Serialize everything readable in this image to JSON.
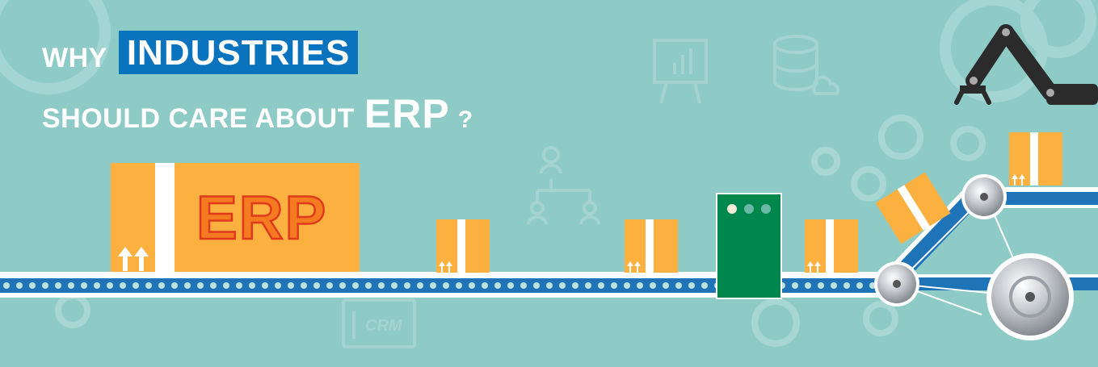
{
  "banner": {
    "headline_prefix": "WHY",
    "headline_highlight": "INDUSTRIES",
    "headline_line2": "SHOULD CARE ABOUT",
    "headline_erp": "ERP",
    "headline_question": "?",
    "big_box_label": "ERP",
    "crm_label": "CRM"
  },
  "colors": {
    "background": "#8ecbc7",
    "highlight_blue": "#0a73bd",
    "box_orange": "#fbb040",
    "erp_text_orange": "#f47b20",
    "conveyor_blue": "#1f74b8",
    "machine_green": "#00874d",
    "robot_arm": "#2b2b2b"
  },
  "icons": [
    "chart-board-icon",
    "database-cloud-icon",
    "org-chart-icon",
    "crm-card-icon",
    "gear-icon",
    "robot-arm-icon"
  ]
}
